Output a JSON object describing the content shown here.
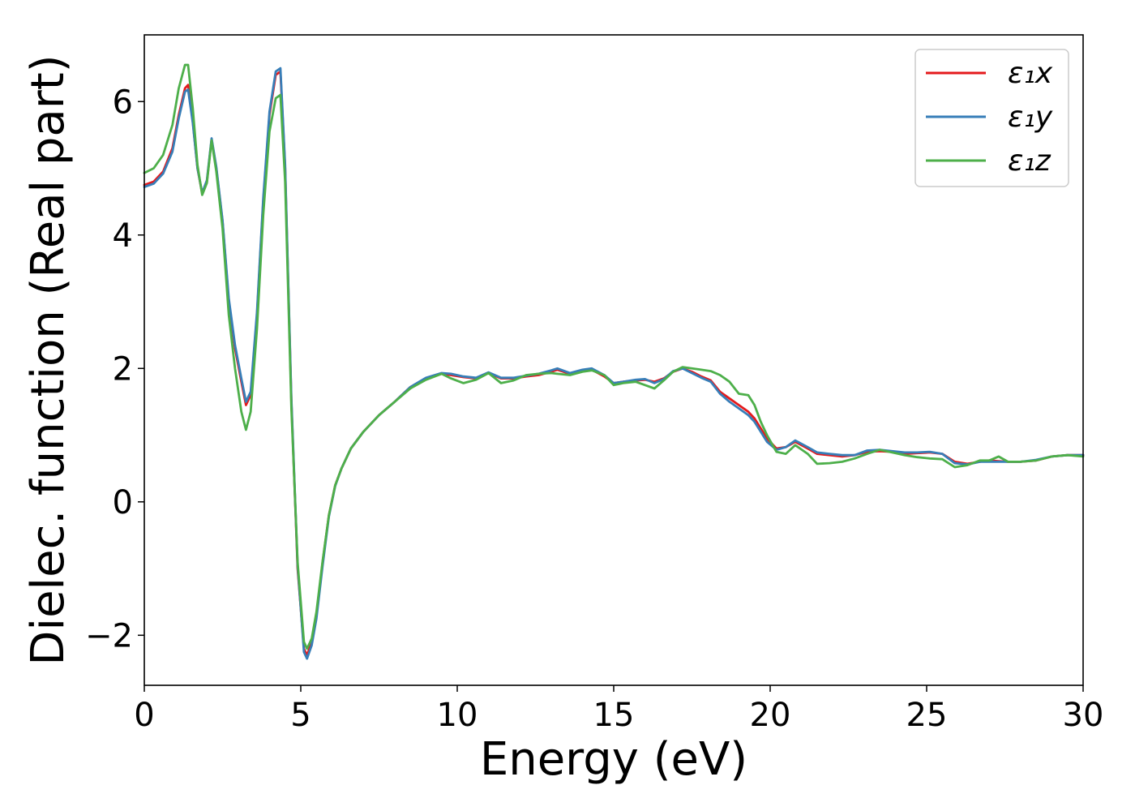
{
  "chart_data": {
    "type": "line",
    "title": "",
    "xlabel": "Energy (eV)",
    "ylabel": "Dielec. function (Real part)",
    "xlim": [
      0,
      30
    ],
    "ylim": [
      -2.75,
      7.0
    ],
    "xticks": [
      0,
      5,
      10,
      15,
      20,
      25,
      30
    ],
    "yticks": [
      -2,
      0,
      2,
      4,
      6
    ],
    "xtick_labels": [
      "0",
      "5",
      "10",
      "15",
      "20",
      "25",
      "30"
    ],
    "ytick_labels": [
      "−2",
      "0",
      "2",
      "4",
      "6"
    ],
    "grid": false,
    "legend_position": "top-right",
    "series": [
      {
        "name": "ε₁x",
        "color": "#e41a1c",
        "x": [
          0,
          0.3,
          0.6,
          0.9,
          1.1,
          1.3,
          1.4,
          1.55,
          1.7,
          1.85,
          2.0,
          2.15,
          2.3,
          2.5,
          2.7,
          2.9,
          3.1,
          3.25,
          3.4,
          3.6,
          3.8,
          4.0,
          4.2,
          4.35,
          4.5,
          4.7,
          4.9,
          5.1,
          5.2,
          5.35,
          5.5,
          5.7,
          5.9,
          6.1,
          6.3,
          6.6,
          7.0,
          7.5,
          8.0,
          8.5,
          9.0,
          9.5,
          9.8,
          10.2,
          10.6,
          11.0,
          11.4,
          11.8,
          12.2,
          12.6,
          13.0,
          13.2,
          13.6,
          14.0,
          14.3,
          14.7,
          15.0,
          15.3,
          15.7,
          16.0,
          16.3,
          16.6,
          16.9,
          17.2,
          17.5,
          17.8,
          18.1,
          18.4,
          18.7,
          19.0,
          19.3,
          19.5,
          19.7,
          19.9,
          20.2,
          20.5,
          20.8,
          21.2,
          21.5,
          21.9,
          22.3,
          22.7,
          23.1,
          23.5,
          23.9,
          24.3,
          24.7,
          25.1,
          25.5,
          25.9,
          26.3,
          26.7,
          27.0,
          27.3,
          27.6,
          28.0,
          28.5,
          29.0,
          29.5,
          30.0
        ],
        "values": [
          4.75,
          4.8,
          4.95,
          5.3,
          5.8,
          6.2,
          6.25,
          5.7,
          5.0,
          4.62,
          4.8,
          5.43,
          5.0,
          4.2,
          3.0,
          2.3,
          1.8,
          1.45,
          1.6,
          2.8,
          4.5,
          5.8,
          6.4,
          6.45,
          5.0,
          1.5,
          -1.0,
          -2.2,
          -2.3,
          -2.1,
          -1.7,
          -0.9,
          -0.2,
          0.25,
          0.5,
          0.8,
          1.05,
          1.3,
          1.5,
          1.72,
          1.85,
          1.92,
          1.9,
          1.87,
          1.85,
          1.93,
          1.85,
          1.85,
          1.88,
          1.9,
          1.95,
          1.98,
          1.92,
          1.97,
          1.98,
          1.88,
          1.78,
          1.8,
          1.82,
          1.83,
          1.8,
          1.85,
          1.95,
          2.0,
          1.95,
          1.88,
          1.82,
          1.65,
          1.55,
          1.45,
          1.35,
          1.25,
          1.1,
          0.95,
          0.8,
          0.82,
          0.9,
          0.8,
          0.72,
          0.7,
          0.68,
          0.7,
          0.75,
          0.76,
          0.75,
          0.72,
          0.73,
          0.74,
          0.72,
          0.6,
          0.57,
          0.6,
          0.62,
          0.61,
          0.6,
          0.6,
          0.62,
          0.68,
          0.7,
          0.7
        ]
      },
      {
        "name": "ε₁y",
        "color": "#377eb8",
        "x": [
          0,
          0.3,
          0.6,
          0.9,
          1.1,
          1.3,
          1.4,
          1.55,
          1.7,
          1.85,
          2.0,
          2.15,
          2.3,
          2.5,
          2.7,
          2.9,
          3.1,
          3.25,
          3.4,
          3.6,
          3.8,
          4.0,
          4.2,
          4.35,
          4.5,
          4.7,
          4.9,
          5.1,
          5.2,
          5.35,
          5.5,
          5.7,
          5.9,
          6.1,
          6.3,
          6.6,
          7.0,
          7.5,
          8.0,
          8.5,
          9.0,
          9.5,
          9.8,
          10.2,
          10.6,
          11.0,
          11.4,
          11.8,
          12.2,
          12.6,
          13.0,
          13.2,
          13.6,
          14.0,
          14.3,
          14.7,
          15.0,
          15.3,
          15.7,
          16.0,
          16.3,
          16.6,
          16.9,
          17.2,
          17.5,
          17.8,
          18.1,
          18.4,
          18.7,
          19.0,
          19.3,
          19.5,
          19.7,
          19.9,
          20.2,
          20.5,
          20.8,
          21.2,
          21.5,
          21.9,
          22.3,
          22.7,
          23.1,
          23.5,
          23.9,
          24.3,
          24.7,
          25.1,
          25.5,
          25.9,
          26.3,
          26.7,
          27.0,
          27.3,
          27.6,
          28.0,
          28.5,
          29.0,
          29.5,
          30.0
        ],
        "values": [
          4.72,
          4.77,
          4.92,
          5.25,
          5.75,
          6.15,
          6.18,
          5.68,
          5.0,
          4.63,
          4.82,
          5.45,
          5.02,
          4.22,
          3.05,
          2.35,
          1.85,
          1.5,
          1.65,
          2.85,
          4.55,
          5.85,
          6.45,
          6.5,
          5.05,
          1.55,
          -0.95,
          -2.25,
          -2.35,
          -2.15,
          -1.75,
          -0.95,
          -0.22,
          0.24,
          0.5,
          0.8,
          1.05,
          1.3,
          1.5,
          1.72,
          1.86,
          1.93,
          1.92,
          1.88,
          1.86,
          1.94,
          1.86,
          1.86,
          1.89,
          1.92,
          1.97,
          2.0,
          1.93,
          1.98,
          2.0,
          1.9,
          1.78,
          1.8,
          1.83,
          1.84,
          1.78,
          1.84,
          1.96,
          2.0,
          1.93,
          1.86,
          1.8,
          1.62,
          1.5,
          1.4,
          1.3,
          1.2,
          1.05,
          0.9,
          0.78,
          0.82,
          0.92,
          0.82,
          0.74,
          0.72,
          0.7,
          0.7,
          0.77,
          0.78,
          0.76,
          0.74,
          0.74,
          0.75,
          0.72,
          0.58,
          0.56,
          0.6,
          0.6,
          0.6,
          0.6,
          0.6,
          0.63,
          0.68,
          0.7,
          0.7
        ]
      },
      {
        "name": "ε₁z",
        "color": "#4daf4a",
        "x": [
          0,
          0.3,
          0.6,
          0.9,
          1.1,
          1.3,
          1.4,
          1.55,
          1.7,
          1.85,
          2.0,
          2.15,
          2.3,
          2.5,
          2.7,
          2.9,
          3.1,
          3.25,
          3.4,
          3.6,
          3.8,
          4.0,
          4.2,
          4.35,
          4.5,
          4.7,
          4.9,
          5.1,
          5.2,
          5.35,
          5.5,
          5.7,
          5.9,
          6.1,
          6.3,
          6.6,
          7.0,
          7.5,
          8.0,
          8.5,
          9.0,
          9.5,
          9.8,
          10.2,
          10.6,
          11.0,
          11.4,
          11.8,
          12.2,
          12.6,
          13.0,
          13.2,
          13.6,
          14.0,
          14.3,
          14.7,
          15.0,
          15.3,
          15.7,
          16.0,
          16.3,
          16.6,
          16.9,
          17.2,
          17.5,
          17.8,
          18.1,
          18.4,
          18.7,
          19.0,
          19.3,
          19.5,
          19.7,
          19.9,
          20.2,
          20.5,
          20.8,
          21.2,
          21.5,
          21.9,
          22.3,
          22.7,
          23.1,
          23.5,
          23.9,
          24.3,
          24.7,
          25.1,
          25.5,
          25.9,
          26.3,
          26.7,
          27.0,
          27.3,
          27.6,
          28.0,
          28.5,
          29.0,
          29.5,
          30.0
        ],
        "values": [
          4.93,
          5.0,
          5.2,
          5.65,
          6.2,
          6.55,
          6.55,
          5.9,
          5.05,
          4.6,
          4.78,
          5.42,
          4.95,
          4.1,
          2.8,
          2.0,
          1.35,
          1.08,
          1.35,
          2.6,
          4.3,
          5.55,
          6.05,
          6.1,
          4.8,
          1.4,
          -0.9,
          -2.1,
          -2.2,
          -2.05,
          -1.65,
          -0.88,
          -0.2,
          0.25,
          0.5,
          0.8,
          1.05,
          1.3,
          1.5,
          1.7,
          1.83,
          1.92,
          1.85,
          1.78,
          1.83,
          1.93,
          1.78,
          1.82,
          1.9,
          1.92,
          1.93,
          1.92,
          1.9,
          1.95,
          1.97,
          1.9,
          1.75,
          1.78,
          1.8,
          1.75,
          1.7,
          1.82,
          1.95,
          2.02,
          2.0,
          1.98,
          1.96,
          1.9,
          1.8,
          1.62,
          1.6,
          1.45,
          1.2,
          1.0,
          0.75,
          0.72,
          0.85,
          0.72,
          0.57,
          0.58,
          0.6,
          0.65,
          0.72,
          0.78,
          0.74,
          0.7,
          0.67,
          0.65,
          0.64,
          0.52,
          0.55,
          0.62,
          0.62,
          0.68,
          0.6,
          0.6,
          0.62,
          0.68,
          0.7,
          0.68
        ]
      }
    ]
  }
}
